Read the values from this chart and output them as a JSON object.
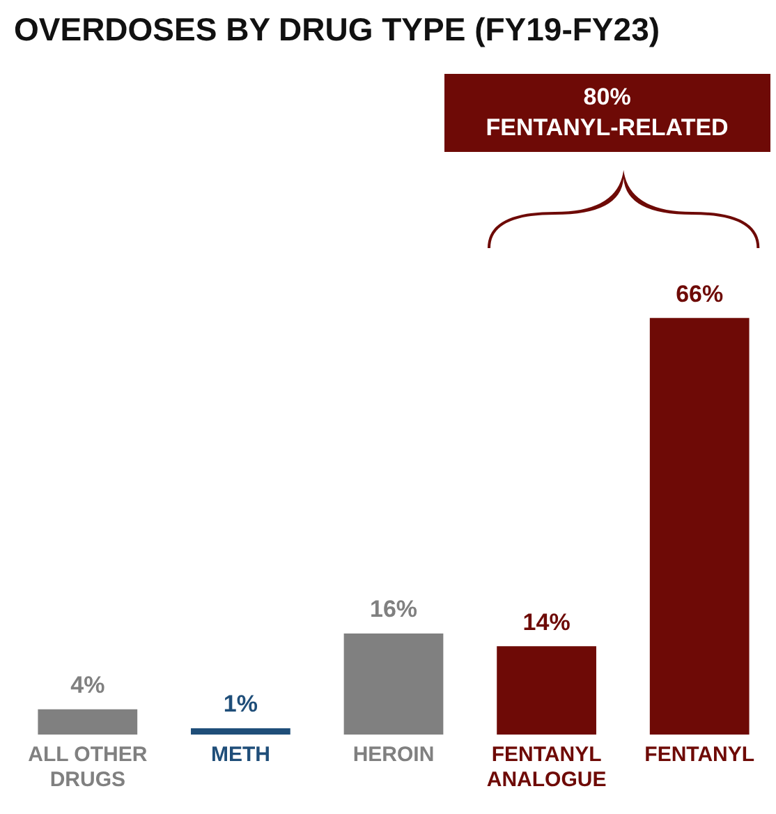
{
  "chart_data": {
    "type": "bar",
    "title": "OVERDOSES BY DRUG TYPE (FY19-FY23)",
    "categories": [
      "ALL OTHER DRUGS",
      "METH",
      "HEROIN",
      "FENTANYL ANALOGUE",
      "FENTANYL"
    ],
    "values": [
      4,
      1,
      16,
      14,
      66
    ],
    "colors": [
      "#808080",
      "#1f4e79",
      "#808080",
      "#6e0a06",
      "#6e0a06"
    ],
    "value_labels": [
      "4%",
      "1%",
      "16%",
      "14%",
      "66%"
    ],
    "annotations": [
      "80% FENTANYL-RELATED"
    ],
    "grid": false,
    "legend": false
  }
}
